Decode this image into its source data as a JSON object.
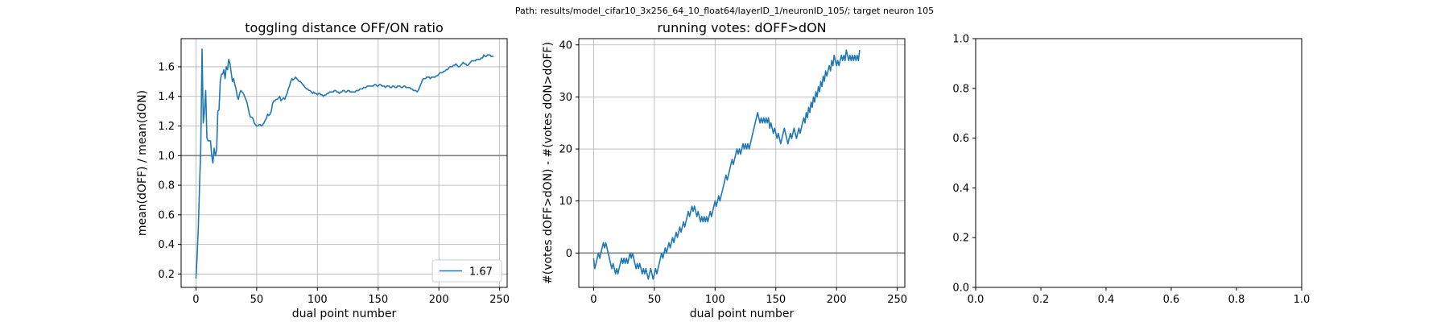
{
  "suptitle": "Path: results/model_cifar10_3x256_64_10_float64/layerID_1/neuronID_105/; target neuron 105",
  "chart_data": [
    {
      "type": "line",
      "title": "toggling distance OFF/ON ratio",
      "xlabel": "dual point number",
      "ylabel": "mean(dOFF) / mean(dON)",
      "xlim": [
        -12.2,
        256.2
      ],
      "ylim": [
        0.11,
        1.79
      ],
      "xticks": [
        0,
        50,
        100,
        150,
        200,
        250
      ],
      "yticks": [
        0.2,
        0.4,
        0.6,
        0.8,
        1.0,
        1.2,
        1.4,
        1.6
      ],
      "ytick_decimals": 1,
      "grid": true,
      "hline": 1.0,
      "legend": {
        "position": "lower-right",
        "entries": [
          "1.67"
        ]
      },
      "color": "#1f77b4",
      "x_start": 0,
      "x_step": 1,
      "y": [
        0.17,
        0.32,
        0.52,
        0.8,
        1.05,
        1.72,
        1.22,
        1.3,
        1.44,
        1.12,
        1.1,
        1.1,
        1.1,
        1.0,
        0.95,
        1.05,
        1.0,
        1.04,
        1.3,
        1.31,
        1.5,
        1.55,
        1.55,
        1.58,
        1.52,
        1.6,
        1.58,
        1.65,
        1.62,
        1.56,
        1.5,
        1.52,
        1.48,
        1.45,
        1.4,
        1.38,
        1.42,
        1.44,
        1.43,
        1.42,
        1.4,
        1.38,
        1.36,
        1.32,
        1.28,
        1.26,
        1.26,
        1.25,
        1.22,
        1.21,
        1.2,
        1.2,
        1.21,
        1.21,
        1.2,
        1.21,
        1.22,
        1.24,
        1.25,
        1.28,
        1.27,
        1.28,
        1.3,
        1.35,
        1.37,
        1.37,
        1.38,
        1.38,
        1.39,
        1.4,
        1.37,
        1.38,
        1.39,
        1.38,
        1.4,
        1.42,
        1.45,
        1.47,
        1.5,
        1.52,
        1.51,
        1.52,
        1.53,
        1.52,
        1.51,
        1.5,
        1.5,
        1.49,
        1.48,
        1.47,
        1.46,
        1.45,
        1.45,
        1.44,
        1.44,
        1.43,
        1.42,
        1.43,
        1.42,
        1.42,
        1.41,
        1.42,
        1.42,
        1.41,
        1.41,
        1.4,
        1.41,
        1.41,
        1.42,
        1.42,
        1.43,
        1.43,
        1.43,
        1.43,
        1.44,
        1.44,
        1.43,
        1.43,
        1.42,
        1.43,
        1.43,
        1.44,
        1.44,
        1.43,
        1.43,
        1.44,
        1.44,
        1.43,
        1.43,
        1.43,
        1.43,
        1.43,
        1.44,
        1.44,
        1.44,
        1.45,
        1.45,
        1.45,
        1.46,
        1.46,
        1.46,
        1.47,
        1.47,
        1.47,
        1.47,
        1.47,
        1.47,
        1.48,
        1.48,
        1.47,
        1.47,
        1.48,
        1.48,
        1.47,
        1.47,
        1.47,
        1.46,
        1.47,
        1.47,
        1.47,
        1.46,
        1.46,
        1.47,
        1.47,
        1.46,
        1.46,
        1.47,
        1.47,
        1.47,
        1.46,
        1.46,
        1.47,
        1.47,
        1.46,
        1.46,
        1.46,
        1.46,
        1.45,
        1.45,
        1.44,
        1.44,
        1.44,
        1.43,
        1.44,
        1.46,
        1.48,
        1.5,
        1.52,
        1.52,
        1.52,
        1.53,
        1.53,
        1.53,
        1.52,
        1.53,
        1.53,
        1.53,
        1.53,
        1.54,
        1.54,
        1.55,
        1.56,
        1.56,
        1.56,
        1.57,
        1.57,
        1.58,
        1.58,
        1.59,
        1.6,
        1.6,
        1.6,
        1.61,
        1.61,
        1.62,
        1.61,
        1.6,
        1.6,
        1.61,
        1.62,
        1.63,
        1.62,
        1.62,
        1.61,
        1.61,
        1.62,
        1.63,
        1.64,
        1.64,
        1.64,
        1.64,
        1.65,
        1.65,
        1.65,
        1.65,
        1.66,
        1.66,
        1.68,
        1.67,
        1.67,
        1.68,
        1.68,
        1.68,
        1.67,
        1.67,
        1.67
      ]
    },
    {
      "type": "line",
      "title": "running votes: dOFF>dON",
      "xlabel": "dual point number",
      "ylabel": "#(votes dOFF>dON) - #(votes dON>dOFF)",
      "xlim": [
        -12.2,
        256.2
      ],
      "ylim": [
        -6.6,
        41.2
      ],
      "xticks": [
        0,
        50,
        100,
        150,
        200,
        250
      ],
      "yticks": [
        0,
        10,
        20,
        30,
        40
      ],
      "ytick_decimals": 0,
      "grid": true,
      "hline": 0,
      "color": "#1f77b4",
      "x_start": 0,
      "x_step": 1,
      "y": [
        -1,
        -3,
        -2,
        -1,
        0,
        -1,
        0,
        1,
        2,
        1,
        2,
        1,
        0,
        -1,
        -2,
        -3,
        -2,
        -3,
        -4,
        -3,
        -4,
        -3,
        -2,
        -1,
        -2,
        -1,
        -2,
        -1,
        -2,
        -1,
        0,
        -1,
        0,
        -1,
        -2,
        -3,
        -2,
        -3,
        -2,
        -3,
        -4,
        -3,
        -4,
        -3,
        -4,
        -5,
        -4,
        -3,
        -4,
        -5,
        -4,
        -3,
        -4,
        -3,
        -2,
        -1,
        0,
        -1,
        0,
        1,
        0,
        1,
        2,
        1,
        2,
        3,
        2,
        3,
        4,
        3,
        4,
        5,
        4,
        5,
        6,
        5,
        6,
        7,
        8,
        7,
        8,
        9,
        8,
        9,
        8,
        7,
        8,
        7,
        6,
        7,
        6,
        7,
        6,
        7,
        6,
        7,
        8,
        7,
        8,
        9,
        10,
        9,
        10,
        11,
        10,
        11,
        12,
        13,
        14,
        15,
        14,
        15,
        16,
        17,
        18,
        17,
        18,
        19,
        20,
        19,
        20,
        19,
        20,
        21,
        20,
        21,
        20,
        21,
        20,
        21,
        22,
        23,
        24,
        25,
        26,
        27,
        26,
        25,
        26,
        25,
        26,
        25,
        26,
        25,
        26,
        24,
        25,
        24,
        23,
        24,
        23,
        22,
        23,
        22,
        21,
        22,
        23,
        24,
        23,
        22,
        21,
        22,
        23,
        22,
        23,
        24,
        23,
        22,
        23,
        24,
        23,
        24,
        25,
        26,
        25,
        27,
        26,
        28,
        27,
        29,
        28,
        30,
        29,
        31,
        30,
        32,
        31,
        33,
        32,
        34,
        33,
        35,
        34,
        35,
        36,
        35,
        37,
        36,
        38,
        37,
        36,
        37,
        36,
        37,
        38,
        37,
        38,
        37,
        39,
        38,
        37,
        38,
        37,
        38,
        37,
        38,
        37,
        38,
        37,
        39
      ]
    },
    {
      "type": "empty",
      "xlim": [
        0,
        1
      ],
      "ylim": [
        0,
        1
      ],
      "xticks": [
        0.0,
        0.2,
        0.4,
        0.6,
        0.8,
        1.0
      ],
      "yticks": [
        0.0,
        0.2,
        0.4,
        0.6,
        0.8,
        1.0
      ],
      "ytick_decimals": 1,
      "grid": false
    }
  ]
}
